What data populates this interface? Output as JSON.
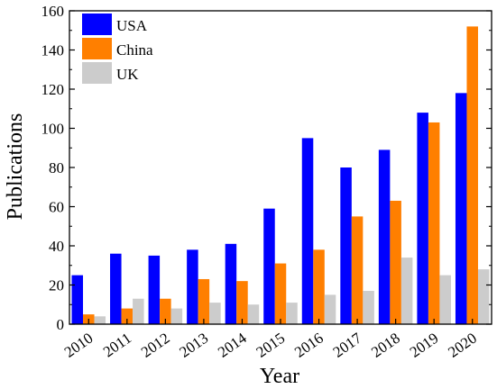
{
  "chart_data": {
    "type": "bar",
    "categories": [
      "2010",
      "2011",
      "2012",
      "2013",
      "2014",
      "2015",
      "2016",
      "2017",
      "2018",
      "2019",
      "2020"
    ],
    "series": [
      {
        "name": "USA",
        "color": "#0000ff",
        "values": [
          25,
          36,
          35,
          38,
          41,
          59,
          95,
          80,
          89,
          108,
          118
        ]
      },
      {
        "name": "China",
        "color": "#ff7f00",
        "values": [
          5,
          8,
          13,
          23,
          22,
          31,
          38,
          55,
          63,
          103,
          152
        ]
      },
      {
        "name": "UK",
        "color": "#cccccc",
        "values": [
          4,
          13,
          8,
          11,
          10,
          11,
          15,
          17,
          34,
          25,
          28
        ]
      }
    ],
    "xlabel": "Year",
    "ylabel": "Publications",
    "ylim": [
      0,
      160
    ],
    "yticks": [
      0,
      20,
      40,
      60,
      80,
      100,
      120,
      140,
      160
    ],
    "grid": false,
    "legend_position": "top-left"
  }
}
